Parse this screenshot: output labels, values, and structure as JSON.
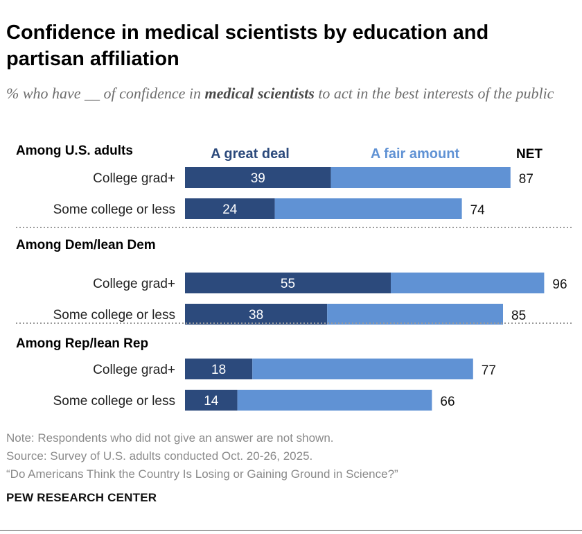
{
  "header": {
    "title": "Confidence in medical scientists by education and partisan affiliation",
    "subtitle_before": "% who have __ of confidence in ",
    "subtitle_bold": "medical scientists",
    "subtitle_after": " to act in the best interests of the public"
  },
  "chart_data": {
    "type": "bar",
    "orientation": "horizontal",
    "stacked": true,
    "legend": {
      "placement": "top",
      "entries": [
        "A great deal",
        "A fair amount",
        "NET"
      ]
    },
    "colors": {
      "a_great_deal": "#2c4a7c",
      "a_fair_amount": "#6092d4"
    },
    "xlim": [
      0,
      100
    ],
    "groups": [
      {
        "label": "Among U.S. adults",
        "rows": [
          {
            "label": "College grad+",
            "a_great_deal": 39,
            "a_fair_amount": 48,
            "net": 87
          },
          {
            "label": "Some college or less",
            "a_great_deal": 24,
            "a_fair_amount": 50,
            "net": 74
          }
        ]
      },
      {
        "label": "Among Dem/lean Dem",
        "rows": [
          {
            "label": "College grad+",
            "a_great_deal": 55,
            "a_fair_amount": 41,
            "net": 96
          },
          {
            "label": "Some college or less",
            "a_great_deal": 38,
            "a_fair_amount": 47,
            "net": 85
          }
        ]
      },
      {
        "label": "Among Rep/lean Rep",
        "rows": [
          {
            "label": "College grad+",
            "a_great_deal": 18,
            "a_fair_amount": 59,
            "net": 77
          },
          {
            "label": "Some college or less",
            "a_great_deal": 14,
            "a_fair_amount": 52,
            "net": 66
          }
        ]
      }
    ]
  },
  "footer": {
    "note": "Note: Respondents who did not give an answer are not shown.",
    "source": "Source: Survey of U.S. adults conducted Oct. 20-26, 2025.",
    "report": "“Do Americans Think the Country Is Losing or Gaining Ground in Science?”",
    "brand": "PEW RESEARCH CENTER"
  }
}
